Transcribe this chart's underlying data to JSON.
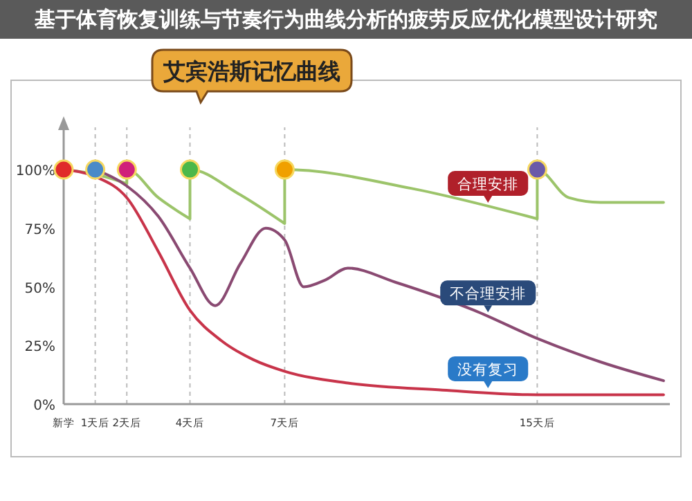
{
  "chart_data": {
    "type": "line",
    "title": "艾宾浩斯记忆曲线",
    "subtitle": "基于体育恢复训练与节奏行为曲线分析的疲劳反应优化模型设计研究",
    "xlim": [
      0,
      19.2
    ],
    "xticks": [
      {
        "value": 0,
        "label": "新学"
      },
      {
        "value": 1,
        "label": "1天后"
      },
      {
        "value": 2,
        "label": "2天后"
      },
      {
        "value": 4,
        "label": "4天后"
      },
      {
        "value": 7,
        "label": "7天后"
      },
      {
        "value": 15,
        "label": "15天后"
      }
    ],
    "ylim": [
      0,
      118
    ],
    "yticks": [
      {
        "value": 0,
        "label": "0%"
      },
      {
        "value": 25,
        "label": "25%"
      },
      {
        "value": 50,
        "label": "50%"
      },
      {
        "value": 75,
        "label": "75%"
      },
      {
        "value": 100,
        "label": "100%"
      }
    ],
    "grid": "x",
    "series": [
      {
        "name": "合理安排",
        "color": "#9cc46a",
        "x": [
          0,
          1,
          2,
          2,
          3,
          4,
          4,
          5.5,
          7,
          7,
          11,
          15,
          15,
          16,
          17,
          19
        ],
        "values": [
          100,
          98,
          94,
          100,
          88,
          79,
          100,
          90,
          77,
          100,
          92,
          79,
          100,
          88,
          86,
          86
        ]
      },
      {
        "name": "不合理安排",
        "color": "#8a4a72",
        "x": [
          1,
          2,
          3,
          4,
          4.8,
          5.6,
          6.4,
          7,
          7.6,
          8.3,
          9,
          10.5,
          13,
          15,
          17,
          19
        ],
        "values": [
          100,
          93,
          80,
          58,
          42,
          60,
          75,
          70,
          50,
          53,
          58,
          52,
          40,
          28,
          18,
          10
        ]
      },
      {
        "name": "没有复习",
        "color": "#c8344a",
        "x": [
          0,
          1,
          2,
          3,
          4,
          5,
          6,
          7,
          9,
          12,
          15,
          19
        ],
        "values": [
          100,
          97,
          88,
          65,
          40,
          27,
          19,
          14,
          9,
          6,
          4,
          4
        ]
      },
      {
        "type": "scatter",
        "marker": "circle",
        "x": [
          0,
          1,
          2,
          4,
          7,
          15
        ],
        "values": [
          100,
          100,
          100,
          100,
          100,
          100
        ],
        "colors": [
          "#e02a2a",
          "#4a8ac8",
          "#d0207a",
          "#4cb84a",
          "#f0a000",
          "#6a5aa8"
        ]
      }
    ]
  }
}
